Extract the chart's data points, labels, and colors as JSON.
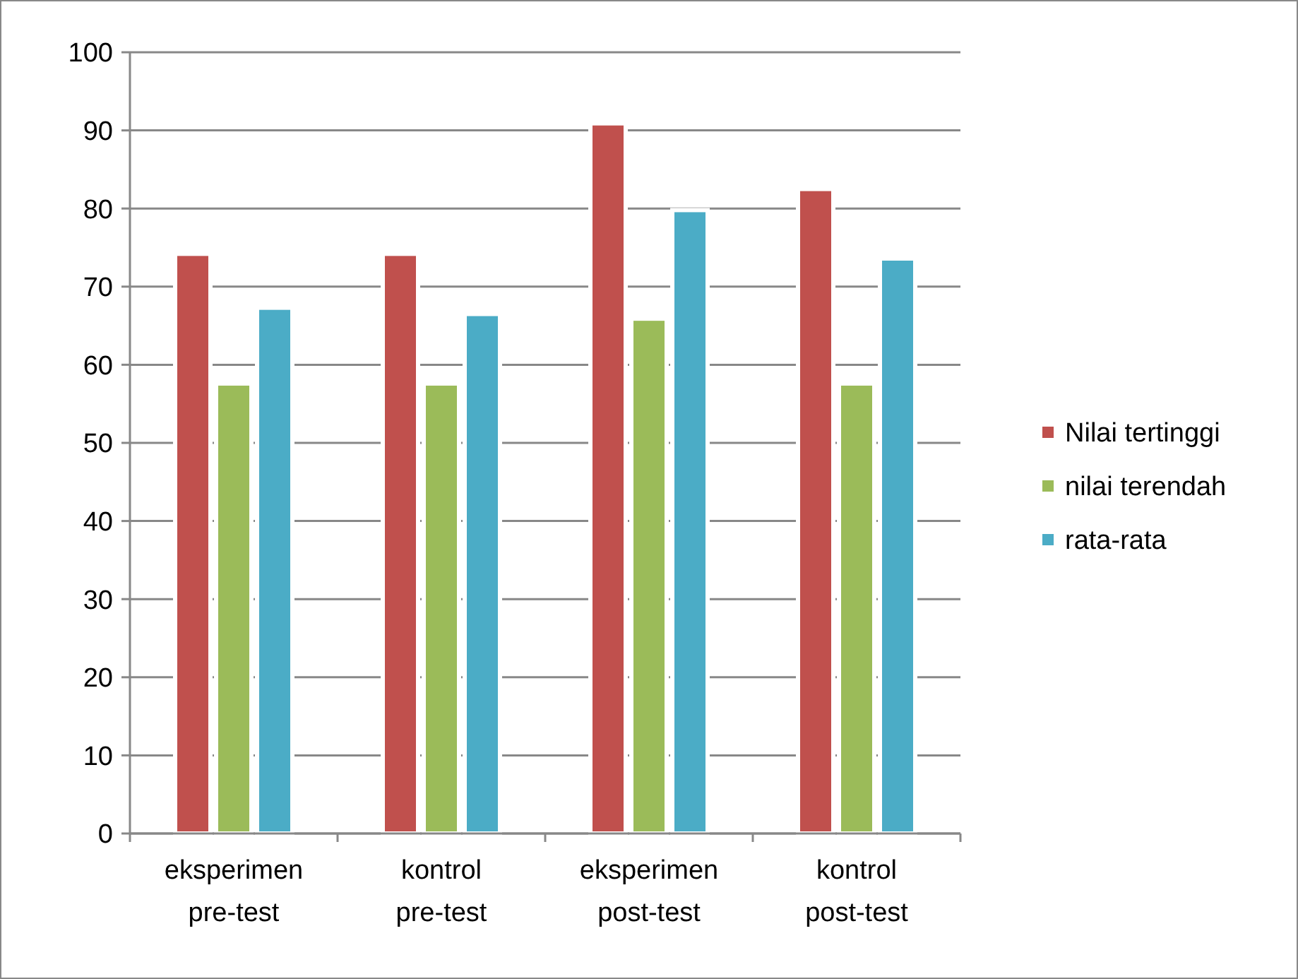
{
  "chart_data": {
    "type": "bar",
    "categories": [
      "eksperimen pre-test",
      "kontrol pre-test",
      "eksperimen post-test",
      "kontrol post-test"
    ],
    "series": [
      {
        "name": "Nilai tertinggi",
        "color": "#c0504d",
        "values": [
          74.2,
          74.2,
          90.9,
          82.5
        ]
      },
      {
        "name": "nilai terendah",
        "color": "#9bbb59",
        "values": [
          57.6,
          57.6,
          65.9,
          57.6
        ]
      },
      {
        "name": "rata-rata",
        "color": "#4bacc6",
        "values": [
          67.3,
          66.5,
          79.8,
          73.6
        ]
      }
    ],
    "ylim": [
      0,
      100
    ],
    "yticks": [
      0,
      10,
      20,
      30,
      40,
      50,
      60,
      70,
      80,
      90,
      100
    ],
    "grid": "y",
    "legend": "right"
  }
}
